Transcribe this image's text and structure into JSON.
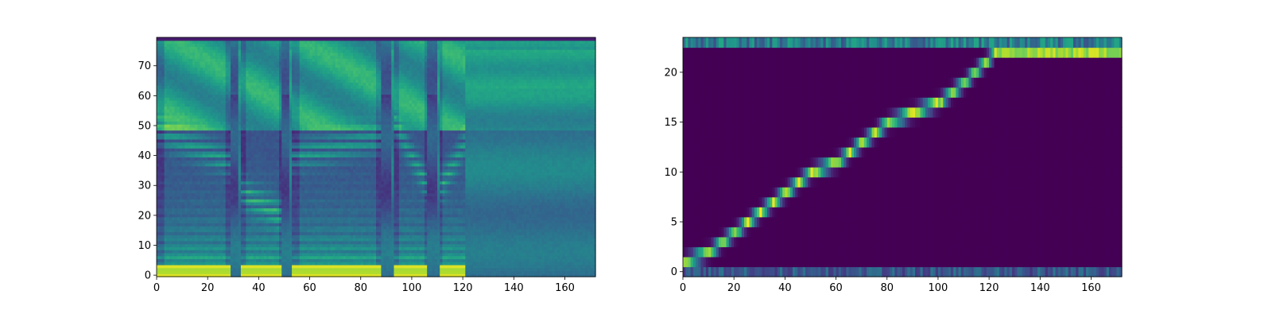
{
  "chart_data": [
    {
      "type": "heatmap",
      "title": "",
      "xlabel": "",
      "ylabel": "",
      "colormap": "viridis",
      "xlim": [
        0,
        172
      ],
      "ylim": [
        -0.5,
        79.5
      ],
      "xticks": [
        0,
        20,
        40,
        60,
        80,
        100,
        120,
        140,
        160
      ],
      "yticks": [
        0,
        10,
        20,
        30,
        40,
        50,
        60,
        70
      ],
      "n_frames": 172,
      "n_bins": 80,
      "segments": [
        {
          "start": 0,
          "end": 29,
          "voiced": true,
          "formant_start": 48,
          "formant_end": 38,
          "formant_peak_at": 14
        },
        {
          "start": 29,
          "end": 32,
          "voiced": false
        },
        {
          "start": 33,
          "end": 49,
          "voiced": true,
          "formant_start": 28,
          "formant_end": 20,
          "formant_peak_at": 42
        },
        {
          "start": 49,
          "end": 52,
          "voiced": false
        },
        {
          "start": 53,
          "end": 88,
          "voiced": true,
          "formant_start": 40,
          "formant_end": 46,
          "formant_peak_at": 80
        },
        {
          "start": 88,
          "end": 92,
          "voiced": false
        },
        {
          "start": 93,
          "end": 106,
          "voiced": true,
          "formant_start": 50,
          "formant_end": 30,
          "formant_peak_at": 100
        },
        {
          "start": 106,
          "end": 110,
          "voiced": false
        },
        {
          "start": 111,
          "end": 121,
          "voiced": true,
          "formant_start": 30,
          "formant_end": 45,
          "formant_peak_at": 116
        },
        {
          "start": 121,
          "end": 172,
          "voiced": false,
          "silence": true
        }
      ]
    },
    {
      "type": "heatmap",
      "title": "",
      "xlabel": "",
      "ylabel": "",
      "colormap": "viridis",
      "xlim": [
        0,
        172
      ],
      "ylim": [
        -0.5,
        23.5
      ],
      "xticks": [
        0,
        20,
        40,
        60,
        80,
        100,
        120,
        140,
        160
      ],
      "yticks": [
        0,
        5,
        10,
        15,
        20
      ],
      "n_frames": 172,
      "n_tokens": 24,
      "alignment_path": [
        {
          "x": 0,
          "y": 1
        },
        {
          "x": 10,
          "y": 2
        },
        {
          "x": 20,
          "y": 4
        },
        {
          "x": 30,
          "y": 6
        },
        {
          "x": 40,
          "y": 8
        },
        {
          "x": 50,
          "y": 10
        },
        {
          "x": 60,
          "y": 11
        },
        {
          "x": 70,
          "y": 13
        },
        {
          "x": 80,
          "y": 15
        },
        {
          "x": 90,
          "y": 16
        },
        {
          "x": 100,
          "y": 17
        },
        {
          "x": 110,
          "y": 19
        },
        {
          "x": 122,
          "y": 22
        },
        {
          "x": 172,
          "y": 22
        }
      ]
    }
  ]
}
